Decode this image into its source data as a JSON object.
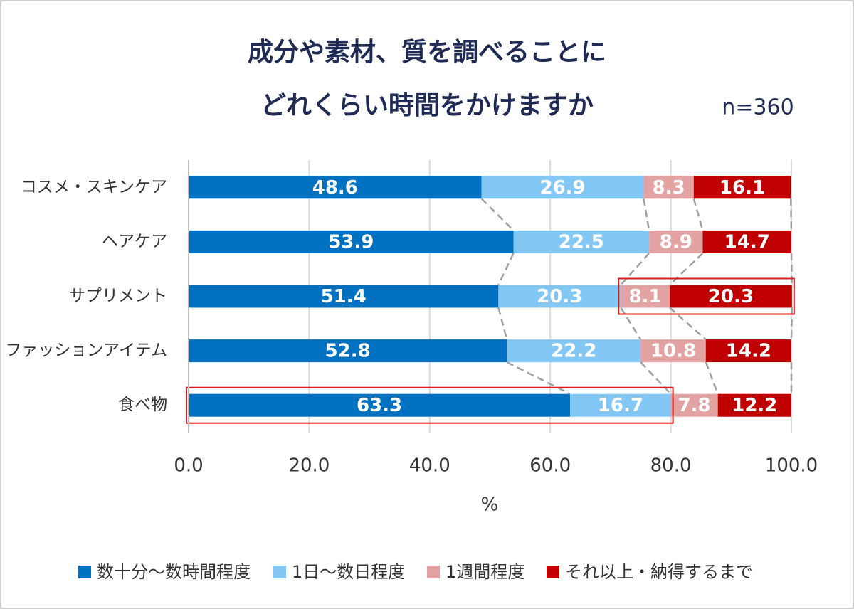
{
  "chart_data": {
    "type": "stacked_barh",
    "title": [
      "成分や素材、質を調べることに",
      "どれくらい時間をかけますか"
    ],
    "subtitle": "n=360",
    "x_label": "%",
    "categories": [
      "コスメ・スキンケア",
      "ヘアケア",
      "サプリメント",
      "ファッションアイテム",
      "食べ物"
    ],
    "series": [
      {
        "name": "数十分～数時間程度",
        "color": "#0070c0",
        "values": [
          48.6,
          53.9,
          51.4,
          52.8,
          63.3
        ]
      },
      {
        "name": "1日～数日程度",
        "color": "#83c8f5",
        "values": [
          26.9,
          22.5,
          20.3,
          22.2,
          16.7
        ]
      },
      {
        "name": "1週間程度",
        "color": "#e4a3a3",
        "values": [
          8.3,
          8.9,
          8.1,
          10.8,
          7.8
        ]
      },
      {
        "name": "それ以上・納得するまで",
        "color": "#c00000",
        "values": [
          16.1,
          14.7,
          20.3,
          14.2,
          12.2
        ]
      }
    ],
    "xlim": [
      0,
      100
    ],
    "xticks": [
      {
        "value": 0,
        "label": "0.0"
      },
      {
        "value": 20,
        "label": "20.0"
      },
      {
        "value": 40,
        "label": "40.0"
      },
      {
        "value": 60,
        "label": "60.0"
      },
      {
        "value": 80,
        "label": "80.0"
      },
      {
        "value": 100,
        "label": "100.0"
      }
    ],
    "grid": true,
    "series_lines": true,
    "legend": "bottom",
    "highlights": [
      {
        "category": "サプリメント",
        "series": [
          "1週間程度",
          "それ以上・納得するまで"
        ],
        "color": "#d81e1e"
      },
      {
        "category": "食べ物",
        "series": [
          "数十分～数時間程度",
          "1日～数日程度"
        ],
        "color": "#d81e1e"
      }
    ]
  }
}
